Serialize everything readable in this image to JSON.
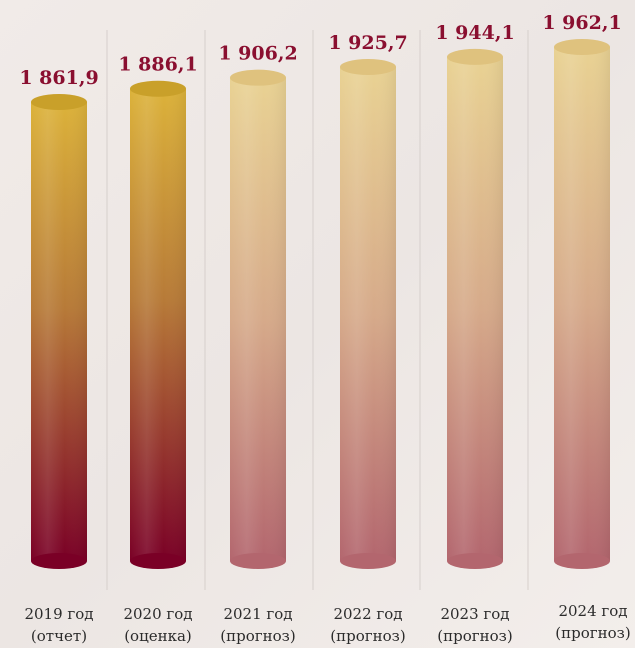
{
  "chart_data": {
    "type": "bar",
    "categories": [
      "2019 год",
      "2020 год",
      "2021 год",
      "2022 год",
      "2023 год",
      "2024 год"
    ],
    "subcategories": [
      "(отчет)",
      "(оценка)",
      "(прогноз)",
      "(прогноз)",
      "(прогноз)",
      "(прогноз)"
    ],
    "values": [
      1861.9,
      1886.1,
      1906.2,
      1925.7,
      1944.1,
      1962.1
    ],
    "value_labels": [
      "1 861,9",
      "1 886,1",
      "1 906,2",
      "1 925,7",
      "1 944,1",
      "1 962,1"
    ],
    "grid": false,
    "legend": "none",
    "colors": {
      "actual_top": "#dcb23a",
      "actual_bottom": "#7a0026",
      "forecast_top": "#e9d293",
      "forecast_bottom": "#b3666e",
      "value_text": "#8a0f30",
      "separator": "#d6cfcc"
    }
  }
}
